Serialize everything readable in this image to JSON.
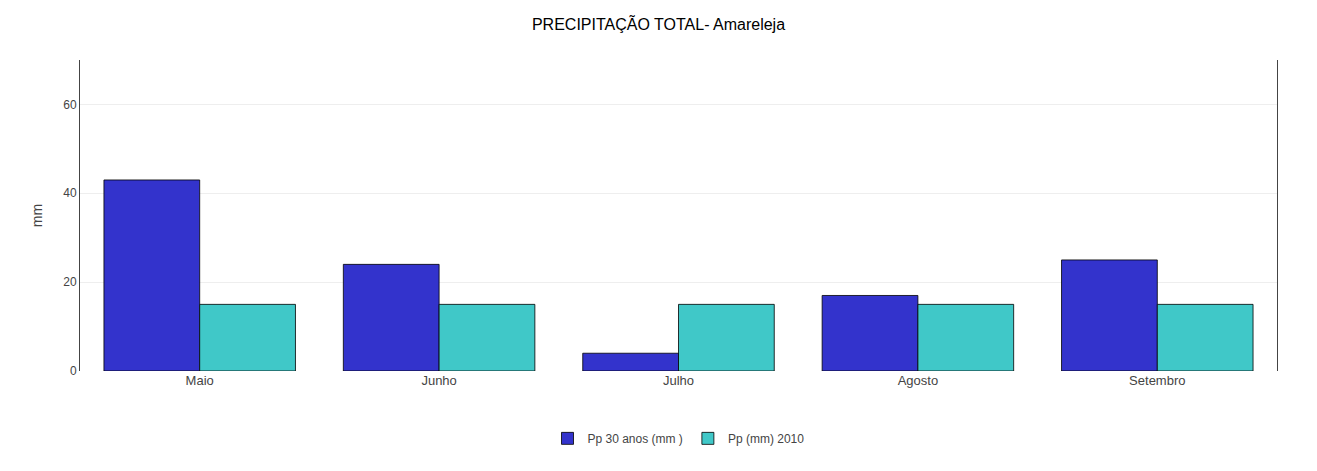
{
  "chart_data": {
    "type": "bar",
    "title": "PRECIPITAÇÃO TOTAL- Amareleja",
    "categories": [
      "Maio",
      "Junho",
      "Julho",
      "Agosto",
      "Setembro"
    ],
    "series": [
      {
        "name": "Pp 30 anos (mm )",
        "color": "#3333CC",
        "values": [
          43,
          24,
          4,
          17,
          25
        ]
      },
      {
        "name": "Pp (mm) 2010",
        "color": "#40C8C8",
        "values": [
          15,
          15,
          15,
          15,
          15
        ]
      }
    ],
    "ylabel": "mm",
    "ylim": [
      0,
      70
    ],
    "yticks": [
      0,
      20,
      40,
      60
    ],
    "grid": true,
    "legend": "bottom"
  }
}
